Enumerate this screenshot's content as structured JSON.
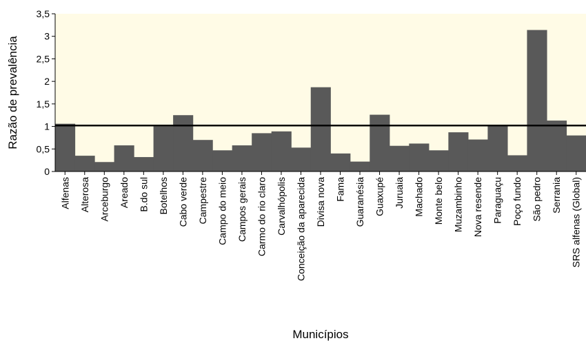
{
  "chart_data": {
    "type": "bar",
    "title": "",
    "xlabel": "Municípios",
    "ylabel": "Razão de prevalência",
    "ylim": [
      0,
      3.5
    ],
    "yticks": [
      "0",
      "0,5",
      "1",
      "1,5",
      "2",
      "2,5",
      "3",
      "3,5"
    ],
    "yticks_values": [
      0,
      0.5,
      1,
      1.5,
      2,
      2.5,
      3,
      3.5
    ],
    "reference_line": 1.02,
    "categories": [
      "Alfenas",
      "Alterosa",
      "Arceburgo",
      "Areado",
      "B.do sul",
      "Botelhos",
      "Cabo verde",
      "Campestre",
      "Campo do meio",
      "Campos gerais",
      "Carmo do rio claro",
      "Carvalhópolis",
      "Conceição da aparecida",
      "Divisa nova",
      "Fama",
      "Guaranésia",
      "Guaxupé",
      "Juruaia",
      "Machado",
      "Monte belo",
      "Muzambinho",
      "Nova resende",
      "Paraguaçu",
      "Poço fundo",
      "São pedro",
      "Serrania",
      "SRS alfenas (Global)"
    ],
    "values": [
      1.06,
      0.35,
      0.21,
      0.58,
      0.32,
      1.0,
      1.25,
      0.7,
      0.47,
      0.58,
      0.85,
      0.89,
      0.53,
      1.87,
      0.4,
      0.22,
      1.26,
      0.57,
      0.62,
      0.47,
      0.87,
      0.71,
      1.03,
      0.36,
      3.14,
      1.13,
      0.8
    ],
    "bar_color": "#595959",
    "plot_background": "#fffbe6",
    "grid": false,
    "legend": "none"
  }
}
